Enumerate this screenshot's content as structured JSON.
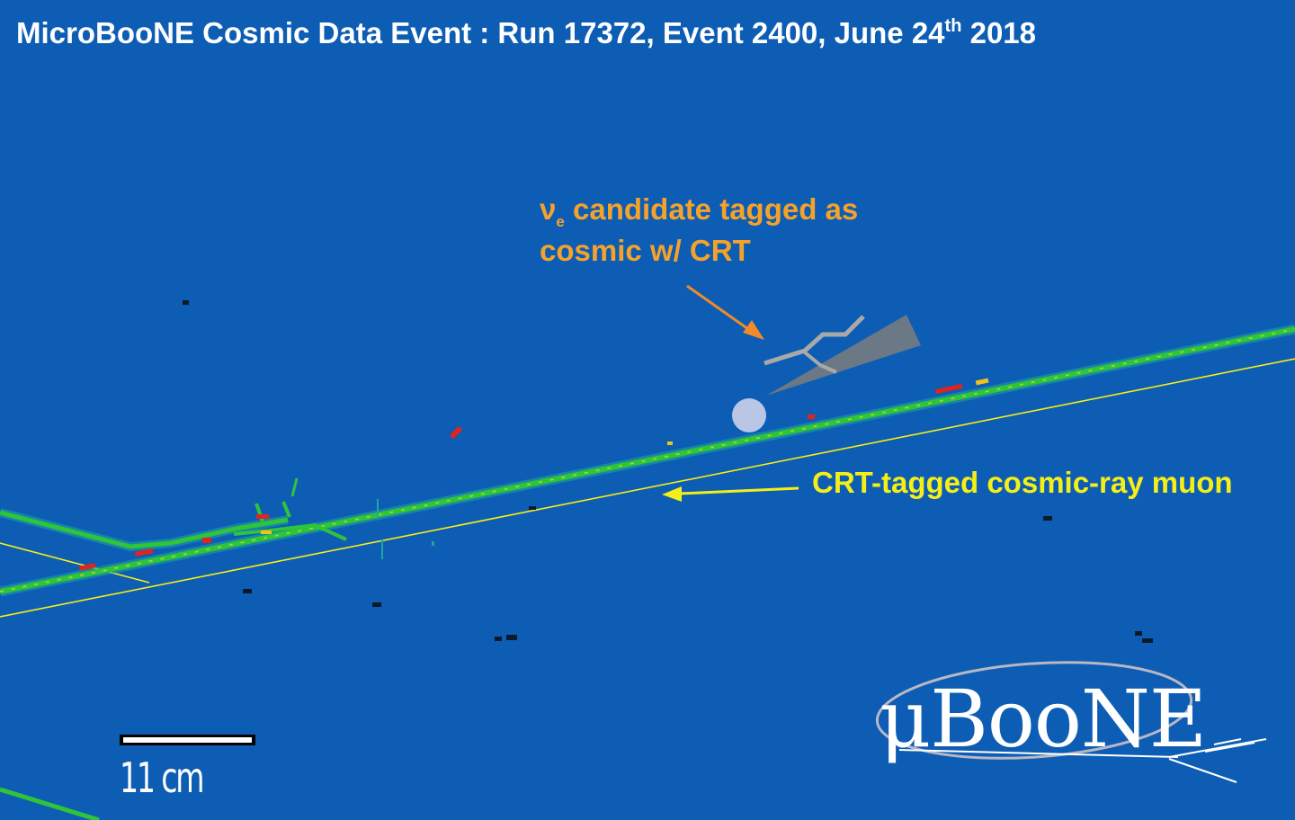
{
  "title": {
    "main": "MicroBooNE Cosmic Data Event : Run 17372, Event 2400, June 24",
    "suffix_sup": "th",
    "year": " 2018"
  },
  "annotations": {
    "nue_symbol": "ν",
    "nue_sub": "e",
    "nue_line1_rest": " candidate tagged as",
    "nue_line2": "cosmic w/ CRT",
    "muon": "CRT-tagged cosmic-ray muon"
  },
  "scale_bar": {
    "label": "11 cm"
  },
  "logo": {
    "text": "μBooNE"
  },
  "colors": {
    "background": "#0d5db5",
    "track_green": "#2fc43a",
    "track_red": "#e2231b",
    "nue_arrow": "#f08a2a",
    "crt_line": "#f5ef16",
    "shower_cone": "#7d7d7d"
  },
  "icons": [
    "orange-arrow-icon",
    "yellow-arrow-icon",
    "vertex-marker-icon",
    "neutrino-arrow-icon"
  ]
}
